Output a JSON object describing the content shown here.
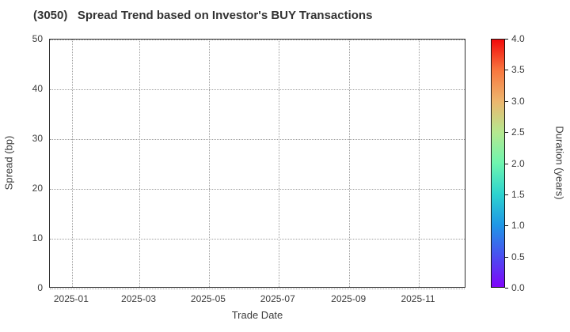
{
  "title": "(3050)   Spread Trend based on Investor's BUY Transactions",
  "chart_data": {
    "type": "scatter",
    "title": "(3050)   Spread Trend based on Investor's BUY Transactions",
    "xlabel": "Trade Date",
    "ylabel": "Spread (bp)",
    "x_tick_labels": [
      "2025-01",
      "2025-03",
      "2025-05",
      "2025-07",
      "2025-09",
      "2025-11"
    ],
    "y_ticks": [
      0,
      10,
      20,
      30,
      40,
      50
    ],
    "ylim": [
      0,
      50
    ],
    "grid": true,
    "grid_style": "dotted",
    "points": [],
    "has_data": false,
    "colors": {
      "title_text": "#333333",
      "tick_text": "#3c3c3c",
      "grid": "#9e9e9e",
      "spine": "#2f2f2f",
      "background": "#ffffff"
    },
    "colorbar": {
      "label": "Duration (years)",
      "range": [
        0.0,
        4.0
      ],
      "tick_labels": [
        "0.0",
        "0.5",
        "1.0",
        "1.5",
        "2.0",
        "2.5",
        "3.0",
        "3.5",
        "4.0"
      ],
      "colormap": "rainbow",
      "gradient_stops": [
        {
          "pos": 0,
          "color": "#7f05fa"
        },
        {
          "pos": 12.5,
          "color": "#4a4ff0"
        },
        {
          "pos": 25,
          "color": "#1f97e6"
        },
        {
          "pos": 37.5,
          "color": "#2dd3cf"
        },
        {
          "pos": 50,
          "color": "#6ef5af"
        },
        {
          "pos": 62.5,
          "color": "#b5e88f"
        },
        {
          "pos": 75,
          "color": "#edb66e"
        },
        {
          "pos": 87.5,
          "color": "#f8773f"
        },
        {
          "pos": 100,
          "color": "#f20a0a"
        }
      ]
    }
  }
}
